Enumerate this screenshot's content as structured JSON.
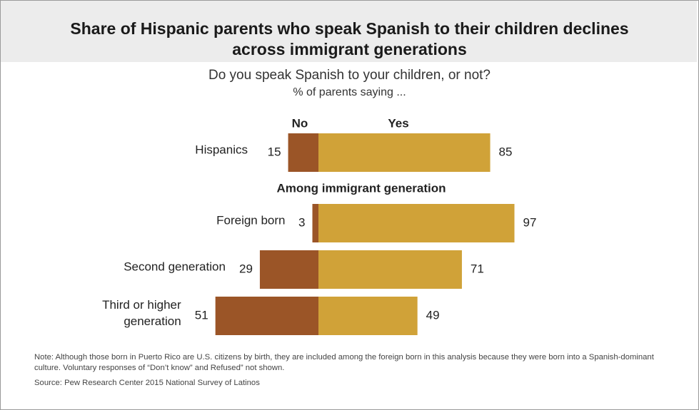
{
  "title_line1": "Share of Hispanic parents who speak Spanish to their children declines",
  "title_line2": "across immigrant generations",
  "subtitle": "Do you speak Spanish to your children, or not?",
  "subtitle2": "% of parents saying ...",
  "colors": {
    "no": "#9b5527",
    "yes": "#d0a238",
    "title_band": "#ececec"
  },
  "chart_data": {
    "type": "bar",
    "orientation": "horizontal-diverging",
    "series": [
      {
        "name": "No",
        "values": [
          15,
          3,
          29,
          51
        ]
      },
      {
        "name": "Yes",
        "values": [
          85,
          97,
          71,
          49
        ]
      }
    ],
    "categories": [
      {
        "lines": [
          "Hispanics"
        ]
      },
      {
        "lines": [
          "Foreign born"
        ]
      },
      {
        "lines": [
          "Second generation"
        ]
      },
      {
        "lines": [
          "Third or higher",
          "generation"
        ]
      }
    ],
    "group_heading": "Among immigrant generation",
    "group_heading_before_index": 1
  },
  "note": "Note: Although those born in Puerto Rico are U.S. citizens by birth, they are included among the foreign born in this analysis because they were born into a Spanish-dominant culture. Voluntary responses of “Don’t know” and Refused” not shown.",
  "source": "Source: Pew Research Center 2015 National Survey of Latinos"
}
